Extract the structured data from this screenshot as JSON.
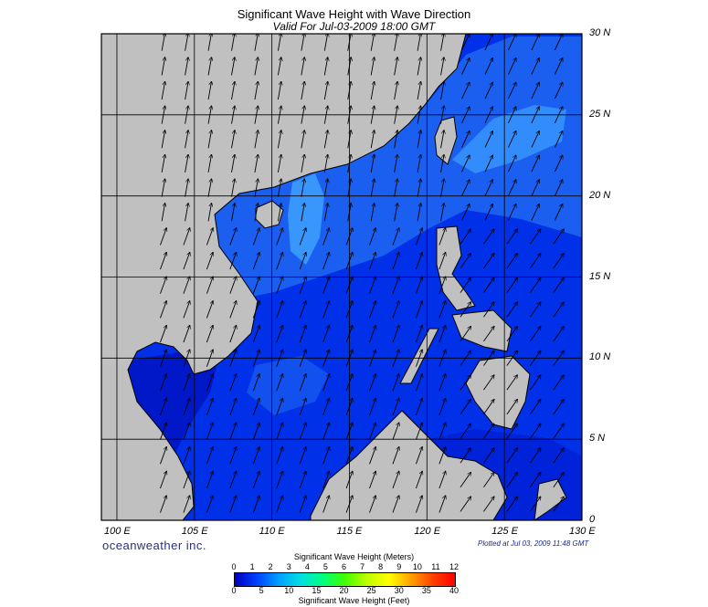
{
  "header": {
    "title": "Significant Wave Height with Wave Direction",
    "subtitle": "Valid For Jul-03-2009 18:00 GMT"
  },
  "map": {
    "lon_range": [
      99,
      130
    ],
    "lat_range": [
      0,
      30
    ],
    "lon_labels": [
      "100 E",
      "105 E",
      "110 E",
      "115 E",
      "120 E",
      "125 E",
      "130 E"
    ],
    "lat_labels": [
      "0",
      "5 N",
      "10 N",
      "15 N",
      "20 N",
      "25 N",
      "30 N"
    ],
    "land_color": "#c0c0c0",
    "sea_colors": {
      "deep": "#0000a8",
      "low": "#0022e0",
      "mid": "#1a5ff0",
      "high": "#3ea0ff"
    }
  },
  "footer": {
    "brand": "oceanweather inc.",
    "plotted": "Plotted at Jul 03, 2009 11:48 GMT"
  },
  "legend": {
    "meters_title": "Significant Wave Height (Meters)",
    "feet_title": "Significant Wave Height (Feet)",
    "meters_ticks": [
      "0",
      "1",
      "2",
      "3",
      "4",
      "5",
      "6",
      "7",
      "8",
      "9",
      "10",
      "11",
      "12"
    ],
    "feet_ticks": [
      "0",
      "5",
      "10",
      "15",
      "20",
      "25",
      "30",
      "35",
      "40"
    ],
    "colors": [
      "#0000c0",
      "#0040ff",
      "#00a0ff",
      "#00e0e0",
      "#00ff80",
      "#40ff00",
      "#c0ff00",
      "#ffff00",
      "#ffa000",
      "#ff4000",
      "#ff0000"
    ]
  }
}
